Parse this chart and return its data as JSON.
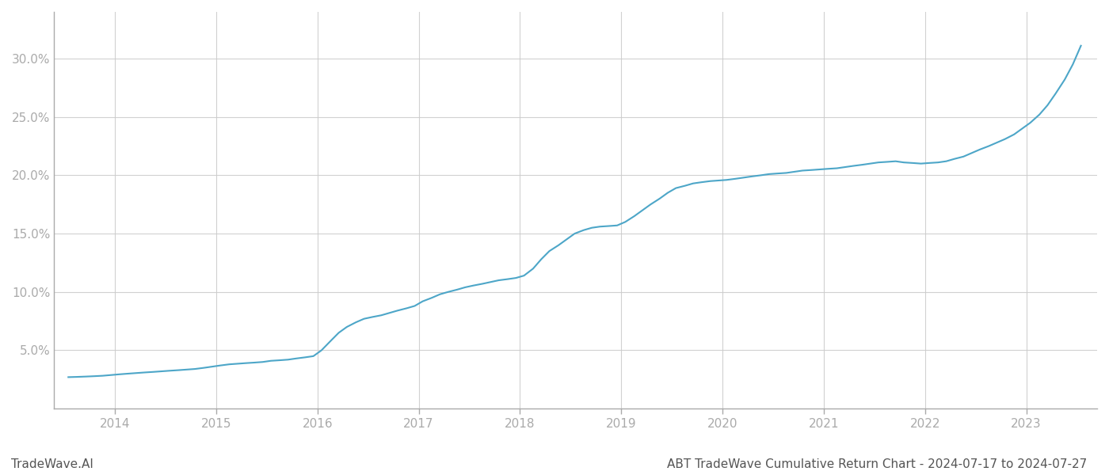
{
  "title": "ABT TradeWave Cumulative Return Chart - 2024-07-17 to 2024-07-27",
  "watermark": "TradeWave.AI",
  "line_color": "#4da6c8",
  "line_width": 1.5,
  "background_color": "#ffffff",
  "grid_color": "#cccccc",
  "x_years": [
    2014,
    2015,
    2016,
    2017,
    2018,
    2019,
    2020,
    2021,
    2022,
    2023
  ],
  "x_data": [
    2013.54,
    2013.62,
    2013.71,
    2013.79,
    2013.88,
    2013.96,
    2014.04,
    2014.13,
    2014.21,
    2014.29,
    2014.38,
    2014.46,
    2014.54,
    2014.63,
    2014.71,
    2014.79,
    2014.88,
    2014.96,
    2015.04,
    2015.13,
    2015.21,
    2015.29,
    2015.38,
    2015.46,
    2015.54,
    2015.63,
    2015.71,
    2015.79,
    2015.88,
    2015.96,
    2016.04,
    2016.13,
    2016.21,
    2016.29,
    2016.38,
    2016.46,
    2016.54,
    2016.63,
    2016.71,
    2016.79,
    2016.88,
    2016.96,
    2017.04,
    2017.13,
    2017.21,
    2017.29,
    2017.38,
    2017.46,
    2017.54,
    2017.63,
    2017.71,
    2017.79,
    2017.88,
    2017.96,
    2018.04,
    2018.13,
    2018.21,
    2018.29,
    2018.38,
    2018.46,
    2018.54,
    2018.63,
    2018.71,
    2018.79,
    2018.88,
    2018.96,
    2019.04,
    2019.13,
    2019.21,
    2019.29,
    2019.38,
    2019.46,
    2019.54,
    2019.63,
    2019.71,
    2019.79,
    2019.88,
    2019.96,
    2020.04,
    2020.13,
    2020.21,
    2020.29,
    2020.38,
    2020.46,
    2020.54,
    2020.63,
    2020.71,
    2020.79,
    2020.88,
    2020.96,
    2021.04,
    2021.13,
    2021.21,
    2021.29,
    2021.38,
    2021.46,
    2021.54,
    2021.63,
    2021.71,
    2021.79,
    2021.88,
    2021.96,
    2022.04,
    2022.13,
    2022.21,
    2022.29,
    2022.38,
    2022.46,
    2022.54,
    2022.63,
    2022.71,
    2022.79,
    2022.88,
    2022.96,
    2023.04,
    2023.13,
    2023.21,
    2023.29,
    2023.38,
    2023.46,
    2023.54
  ],
  "y_data": [
    2.7,
    2.72,
    2.75,
    2.78,
    2.82,
    2.88,
    2.94,
    3.0,
    3.05,
    3.1,
    3.15,
    3.2,
    3.25,
    3.3,
    3.35,
    3.4,
    3.5,
    3.6,
    3.7,
    3.8,
    3.85,
    3.9,
    3.95,
    4.0,
    4.1,
    4.15,
    4.2,
    4.3,
    4.4,
    4.5,
    5.0,
    5.8,
    6.5,
    7.0,
    7.4,
    7.7,
    7.85,
    8.0,
    8.2,
    8.4,
    8.6,
    8.8,
    9.2,
    9.5,
    9.8,
    10.0,
    10.2,
    10.4,
    10.55,
    10.7,
    10.85,
    11.0,
    11.1,
    11.2,
    11.4,
    12.0,
    12.8,
    13.5,
    14.0,
    14.5,
    15.0,
    15.3,
    15.5,
    15.6,
    15.65,
    15.7,
    16.0,
    16.5,
    17.0,
    17.5,
    18.0,
    18.5,
    18.9,
    19.1,
    19.3,
    19.4,
    19.5,
    19.55,
    19.6,
    19.7,
    19.8,
    19.9,
    20.0,
    20.1,
    20.15,
    20.2,
    20.3,
    20.4,
    20.45,
    20.5,
    20.55,
    20.6,
    20.7,
    20.8,
    20.9,
    21.0,
    21.1,
    21.15,
    21.2,
    21.1,
    21.05,
    21.0,
    21.05,
    21.1,
    21.2,
    21.4,
    21.6,
    21.9,
    22.2,
    22.5,
    22.8,
    23.1,
    23.5,
    24.0,
    24.5,
    25.2,
    26.0,
    27.0,
    28.2,
    29.5,
    31.1
  ],
  "yticks": [
    5.0,
    10.0,
    15.0,
    20.0,
    25.0,
    30.0
  ],
  "ylim": [
    0,
    34
  ],
  "xlim": [
    2013.4,
    2023.7
  ],
  "title_fontsize": 11,
  "watermark_fontsize": 11,
  "tick_fontsize": 11,
  "tick_color": "#aaaaaa",
  "axis_color": "#aaaaaa",
  "spine_color": "#aaaaaa"
}
